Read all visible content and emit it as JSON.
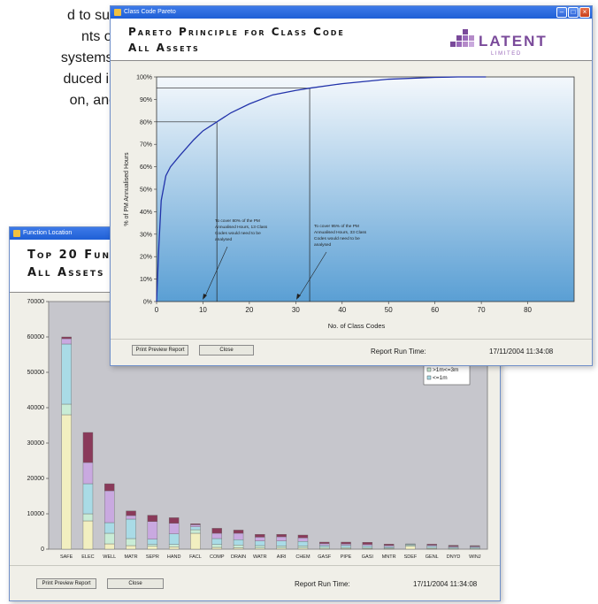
{
  "background_text": [
    "d to suit",
    "nts     or",
    "systems.",
    "duced in",
    "on,   and"
  ],
  "windows": {
    "function": {
      "titlebar": "Function Location",
      "title_line1": "Top 20 Fun",
      "title_line2": "All Assets",
      "print_label": "Print Preview Report",
      "close_label": "Close",
      "run_time_label": "Report  Run  Time:",
      "run_time_value": "17/11/2004  11:34:08"
    },
    "pareto": {
      "titlebar": "Class Code Pareto",
      "title_line1": "Pareto Principle for Class Code",
      "title_line2": "All Assets",
      "logo_text": "LATENT",
      "logo_sub": "L I M I T E D",
      "print_label": "Print Preview Report",
      "close_label": "Close",
      "run_time_label": "Report  Run  Time:",
      "run_time_value": "17/11/2004  11:34:08"
    }
  },
  "chart_data": [
    {
      "type": "bar",
      "stacked": true,
      "categories": [
        "SAFE",
        "ELEC",
        "WELL",
        "MATR",
        "SEPR",
        "HAND",
        "FACL",
        "COMP",
        "DRAIN",
        "WATR",
        "AIRI",
        "CHEM",
        "GASF",
        "PIPE",
        "GASI",
        "MNTR",
        "SDEF",
        "GENL",
        "DNYD",
        "WINJ"
      ],
      "ylim": [
        0,
        70000
      ],
      "yticks": [
        0,
        10000,
        20000,
        30000,
        40000,
        50000,
        60000,
        70000
      ],
      "legend": [
        ">1m<=3m",
        "<=1m"
      ],
      "series_colors": [
        "#f2efc0",
        "#c9ecd6",
        "#a9dbe6",
        "#c9a9e0",
        "#8a3a5a"
      ],
      "series": [
        {
          "values": [
            38000,
            8000,
            1500,
            1000,
            800,
            700,
            4500,
            500,
            400,
            300,
            300,
            300,
            200,
            200,
            150,
            150,
            800,
            150,
            100,
            100
          ]
        },
        {
          "values": [
            3000,
            2000,
            3000,
            2000,
            500,
            600,
            1000,
            800,
            800,
            700,
            600,
            600,
            400,
            300,
            300,
            200,
            400,
            300,
            200,
            200
          ]
        },
        {
          "values": [
            17000,
            8500,
            3000,
            5500,
            1500,
            3000,
            800,
            1700,
            1500,
            1300,
            1400,
            1300,
            500,
            600,
            500,
            400,
            200,
            400,
            300,
            300
          ]
        },
        {
          "values": [
            1500,
            6000,
            9000,
            1000,
            5000,
            3000,
            600,
            1500,
            1800,
            1100,
            1200,
            1000,
            500,
            400,
            400,
            300,
            100,
            300,
            200,
            200
          ]
        },
        {
          "values": [
            500,
            8500,
            2000,
            1300,
            1800,
            1600,
            300,
            1400,
            900,
            800,
            700,
            800,
            400,
            500,
            600,
            400,
            0,
            300,
            300,
            200
          ]
        }
      ]
    },
    {
      "type": "line",
      "xlabel": "No.  of  Class  Codes",
      "ylabel": "%  of  PM  Annualised  Hours",
      "xlim": [
        0,
        90
      ],
      "ylim": [
        0,
        100
      ],
      "xticks": [
        0,
        10,
        20,
        30,
        40,
        50,
        60,
        70,
        80
      ],
      "yticks": [
        "0%",
        "10%",
        "20%",
        "30%",
        "40%",
        "50%",
        "60%",
        "70%",
        "80%",
        "90%",
        "100%"
      ],
      "x": [
        0,
        0.5,
        1,
        2,
        3,
        5,
        8,
        10,
        13,
        16,
        20,
        25,
        30,
        33,
        40,
        50,
        60,
        65,
        71
      ],
      "y": [
        0,
        25,
        45,
        56,
        60,
        65,
        72,
        76,
        80,
        84,
        88,
        92,
        94,
        95,
        97,
        99,
        99.8,
        100,
        100
      ],
      "annotations": [
        {
          "text": [
            "To  cover  80%  of  the  PM",
            "Annualised  Hours,  13  Class",
            "Codes  would  need  to  be",
            "analysed"
          ],
          "x": 13,
          "y": 80
        },
        {
          "text": [
            "To  cover  95%  of  the  PM",
            "Annualised  Hours,  33  Class",
            "Codes  would  need  to  be",
            "analysed"
          ],
          "x": 33,
          "y": 95
        }
      ]
    }
  ]
}
